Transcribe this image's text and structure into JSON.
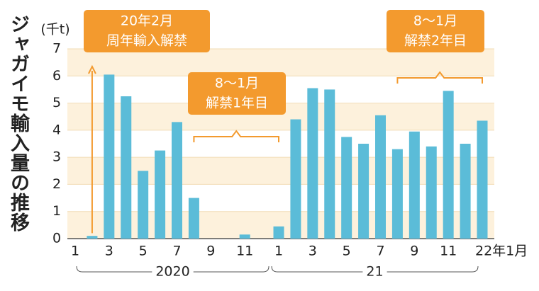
{
  "chart_data": {
    "type": "bar",
    "title": "ジャガイモ輸入量の推移",
    "unit_label": "(千t)",
    "categories": [
      "1",
      null,
      "3",
      null,
      "5",
      null,
      "7",
      null,
      "9",
      null,
      "11",
      null,
      "1",
      null,
      "3",
      null,
      "5",
      null,
      "7",
      null,
      "9",
      null,
      "11",
      null,
      "22年1月"
    ],
    "values": [
      0,
      0.1,
      6.05,
      5.25,
      2.5,
      3.25,
      4.3,
      1.5,
      0,
      0,
      0.15,
      0,
      0.45,
      4.4,
      5.55,
      5.5,
      3.75,
      3.5,
      4.55,
      3.3,
      3.95,
      3.4,
      5.45,
      3.5,
      4.35
    ],
    "color": "#5bbcd8",
    "ylim": [
      0,
      7
    ],
    "yticks": [
      0,
      1,
      2,
      3,
      4,
      5,
      6,
      7
    ],
    "grid": true,
    "year_groups": [
      "2020",
      "21"
    ],
    "annotations": [
      [
        "20年2月",
        "周年輸入解禁"
      ],
      [
        "8～1月",
        "解禁1年目"
      ],
      [
        "8～1月",
        "解禁2年目"
      ]
    ]
  }
}
